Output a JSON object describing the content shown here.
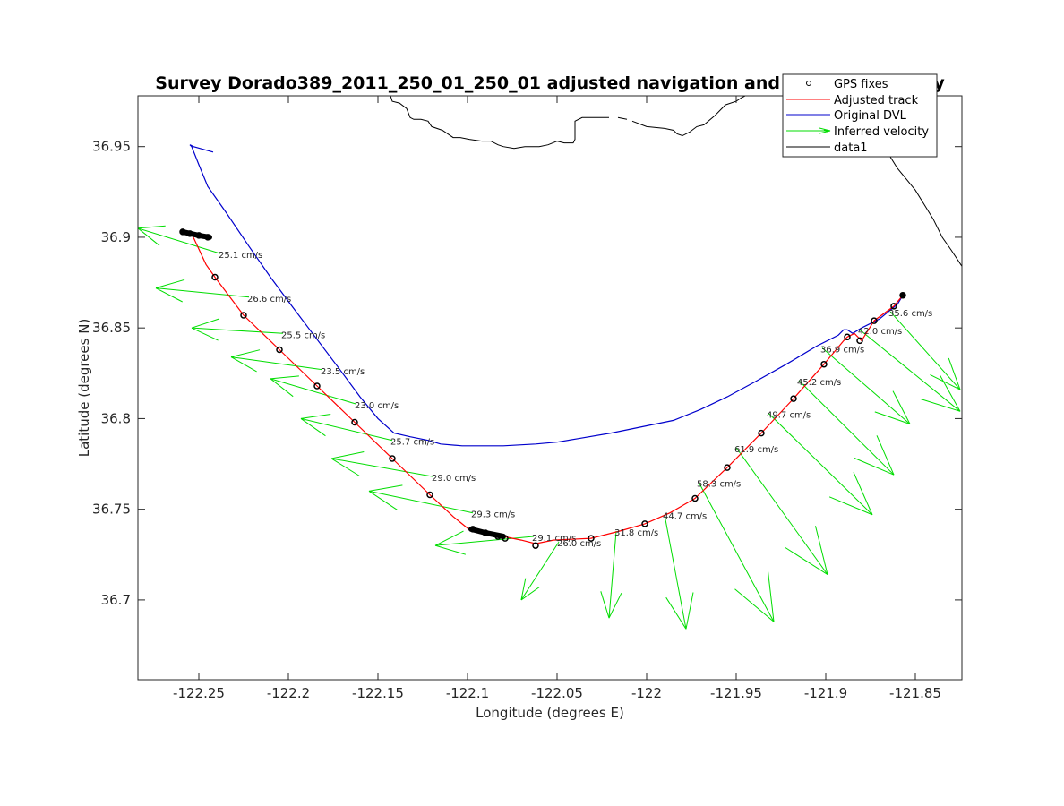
{
  "chart_data": {
    "type": "line",
    "title": "Survey Dorado389_2011_250_01_250_01 adjusted navigation and inferred velocity",
    "xlabel": "Longitude (degrees E)",
    "ylabel": "Latitude (degrees N)",
    "xlim": [
      -122.284,
      -121.824
    ],
    "ylim": [
      36.656,
      36.978
    ],
    "xticks": [
      -122.25,
      -122.2,
      -122.15,
      -122.1,
      -122.05,
      -122,
      -121.95,
      -121.9,
      -121.85
    ],
    "xtick_labels": [
      "-122.25",
      "-122.2",
      "-122.15",
      "-122.1",
      "-122.05",
      "-122",
      "-121.95",
      "-121.9",
      "-121.85"
    ],
    "yticks": [
      36.7,
      36.75,
      36.8,
      36.85,
      36.9,
      36.95
    ],
    "ytick_labels": [
      "36.7",
      "36.75",
      "36.8",
      "36.85",
      "36.9",
      "36.95"
    ],
    "grid": false,
    "legend": {
      "placement": "top-right",
      "entries": [
        {
          "label": "GPS fixes",
          "style": "marker",
          "color": "#000000"
        },
        {
          "label": "Adjusted track",
          "style": "line",
          "color": "#ff0000"
        },
        {
          "label": "Original DVL",
          "style": "line",
          "color": "#0000cc"
        },
        {
          "label": "Inferred velocity",
          "style": "arrow",
          "color": "#00dd00"
        },
        {
          "label": "data1",
          "style": "line",
          "color": "#000000"
        }
      ]
    },
    "series": [
      {
        "name": "data1",
        "kind": "coastline",
        "color": "#000000",
        "segments": [
          [
            [
              -122.143,
              36.978
            ],
            [
              -122.142,
              36.975
            ],
            [
              -122.138,
              36.974
            ],
            [
              -122.134,
              36.971
            ],
            [
              -122.132,
              36.966
            ],
            [
              -122.13,
              36.965
            ],
            [
              -122.126,
              36.965
            ],
            [
              -122.122,
              36.964
            ],
            [
              -122.12,
              36.961
            ],
            [
              -122.114,
              36.959
            ],
            [
              -122.108,
              36.955
            ],
            [
              -122.104,
              36.955
            ],
            [
              -122.099,
              36.954
            ],
            [
              -122.092,
              36.953
            ],
            [
              -122.087,
              36.953
            ],
            [
              -122.083,
              36.951
            ],
            [
              -122.08,
              36.95
            ],
            [
              -122.074,
              36.949
            ],
            [
              -122.068,
              36.95
            ],
            [
              -122.06,
              36.95
            ],
            [
              -122.055,
              36.951
            ],
            [
              -122.05,
              36.953
            ],
            [
              -122.046,
              36.952
            ],
            [
              -122.041,
              36.952
            ],
            [
              -122.04,
              36.954
            ],
            [
              -122.04,
              36.959
            ],
            [
              -122.04,
              36.964
            ],
            [
              -122.036,
              36.966
            ],
            [
              -122.028,
              36.966
            ],
            [
              -122.021,
              36.966
            ]
          ],
          [
            [
              -122.016,
              36.966
            ],
            [
              -122.011,
              36.965
            ]
          ],
          [
            [
              -122.008,
              36.964
            ],
            [
              -122.0,
              36.961
            ],
            [
              -121.99,
              36.96
            ],
            [
              -121.985,
              36.959
            ],
            [
              -121.983,
              36.957
            ],
            [
              -121.98,
              36.956
            ],
            [
              -121.976,
              36.958
            ],
            [
              -121.972,
              36.961
            ],
            [
              -121.968,
              36.962
            ],
            [
              -121.962,
              36.967
            ],
            [
              -121.956,
              36.973
            ],
            [
              -121.95,
              36.975
            ],
            [
              -121.947,
              36.977
            ],
            [
              -121.945,
              36.978
            ]
          ],
          [
            [
              -121.87,
              36.953
            ],
            [
              -121.865,
              36.946
            ],
            [
              -121.86,
              36.938
            ],
            [
              -121.855,
              36.932
            ],
            [
              -121.85,
              36.926
            ],
            [
              -121.845,
              36.918
            ],
            [
              -121.84,
              36.91
            ],
            [
              -121.835,
              36.9
            ],
            [
              -121.83,
              36.893
            ],
            [
              -121.824,
              36.884
            ]
          ]
        ]
      },
      {
        "name": "Original DVL",
        "color": "#0000cc",
        "points": [
          [
            -122.242,
            36.947
          ],
          [
            -122.253,
            36.95
          ],
          [
            -122.255,
            36.951
          ],
          [
            -122.254,
            36.95
          ],
          [
            -122.25,
            36.94
          ],
          [
            -122.245,
            36.928
          ],
          [
            -122.235,
            36.914
          ],
          [
            -122.222,
            36.895
          ],
          [
            -122.21,
            36.878
          ],
          [
            -122.198,
            36.862
          ],
          [
            -122.185,
            36.845
          ],
          [
            -122.172,
            36.828
          ],
          [
            -122.16,
            36.812
          ],
          [
            -122.15,
            36.8
          ],
          [
            -122.141,
            36.792
          ],
          [
            -122.132,
            36.79
          ],
          [
            -122.122,
            36.788
          ],
          [
            -122.115,
            36.786
          ],
          [
            -122.103,
            36.785
          ],
          [
            -122.095,
            36.785
          ],
          [
            -122.08,
            36.785
          ],
          [
            -122.062,
            36.786
          ],
          [
            -122.05,
            36.787
          ],
          [
            -122.038,
            36.789
          ],
          [
            -122.02,
            36.792
          ],
          [
            -122.0,
            36.796
          ],
          [
            -121.985,
            36.799
          ],
          [
            -121.97,
            36.805
          ],
          [
            -121.955,
            36.812
          ],
          [
            -121.94,
            36.82
          ],
          [
            -121.922,
            36.83
          ],
          [
            -121.905,
            36.84
          ],
          [
            -121.893,
            36.846
          ],
          [
            -121.89,
            36.849
          ],
          [
            -121.888,
            36.849
          ],
          [
            -121.885,
            36.847
          ],
          [
            -121.88,
            36.85
          ],
          [
            -121.87,
            36.855
          ],
          [
            -121.86,
            36.863
          ],
          [
            -121.857,
            36.868
          ]
        ]
      },
      {
        "name": "Adjusted track",
        "color": "#ff0000",
        "points": [
          [
            -122.254,
            36.902
          ],
          [
            -122.246,
            36.885
          ],
          [
            -122.241,
            36.878
          ],
          [
            -122.225,
            36.857
          ],
          [
            -122.205,
            36.838
          ],
          [
            -122.184,
            36.818
          ],
          [
            -122.163,
            36.798
          ],
          [
            -122.142,
            36.778
          ],
          [
            -122.121,
            36.758
          ],
          [
            -122.108,
            36.746
          ],
          [
            -122.098,
            36.738
          ],
          [
            -122.08,
            36.735
          ],
          [
            -122.07,
            36.733
          ],
          [
            -122.062,
            36.731
          ],
          [
            -122.052,
            36.733
          ],
          [
            -122.031,
            36.734
          ],
          [
            -122.015,
            36.738
          ],
          [
            -122.001,
            36.742
          ],
          [
            -121.987,
            36.748
          ],
          [
            -121.973,
            36.756
          ],
          [
            -121.955,
            36.773
          ],
          [
            -121.936,
            36.792
          ],
          [
            -121.918,
            36.811
          ],
          [
            -121.901,
            36.83
          ],
          [
            -121.89,
            36.843
          ],
          [
            -121.888,
            36.845
          ],
          [
            -121.884,
            36.847
          ],
          [
            -121.88,
            36.843
          ],
          [
            -121.873,
            36.854
          ],
          [
            -121.862,
            36.862
          ],
          [
            -121.857,
            36.868
          ]
        ]
      },
      {
        "name": "GPS fixes",
        "color": "#000000",
        "marker": "o",
        "points": [
          [
            -122.259,
            36.903
          ],
          [
            -122.255,
            36.902
          ],
          [
            -122.25,
            36.901
          ],
          [
            -122.245,
            36.9
          ],
          [
            -122.241,
            36.878
          ],
          [
            -122.225,
            36.857
          ],
          [
            -122.205,
            36.838
          ],
          [
            -122.184,
            36.818
          ],
          [
            -122.163,
            36.798
          ],
          [
            -122.142,
            36.778
          ],
          [
            -122.121,
            36.758
          ],
          [
            -122.097,
            36.739
          ],
          [
            -122.09,
            36.737
          ],
          [
            -122.083,
            36.735
          ],
          [
            -122.079,
            36.734
          ],
          [
            -122.062,
            36.73
          ],
          [
            -122.031,
            36.734
          ],
          [
            -122.001,
            36.742
          ],
          [
            -121.973,
            36.756
          ],
          [
            -121.955,
            36.773
          ],
          [
            -121.936,
            36.792
          ],
          [
            -121.918,
            36.811
          ],
          [
            -121.901,
            36.83
          ],
          [
            -121.888,
            36.845
          ],
          [
            -121.881,
            36.843
          ],
          [
            -121.873,
            36.854
          ],
          [
            -121.862,
            36.862
          ],
          [
            -121.857,
            36.868
          ]
        ]
      },
      {
        "name": "Inferred velocity",
        "color": "#00dd00",
        "arrows": [
          {
            "from": [
              -122.238,
              36.891
            ],
            "to": [
              -122.284,
              36.905
            ],
            "label": "25.1 cm/s"
          },
          {
            "from": [
              -122.222,
              36.867
            ],
            "to": [
              -122.274,
              36.872
            ],
            "label": "26.6 cm/s"
          },
          {
            "from": [
              -122.203,
              36.847
            ],
            "to": [
              -122.254,
              36.85
            ],
            "label": "25.5 cm/s"
          },
          {
            "from": [
              -122.181,
              36.827
            ],
            "to": [
              -122.232,
              36.834
            ],
            "label": "23.5 cm/s"
          },
          {
            "from": [
              -122.162,
              36.808
            ],
            "to": [
              -122.21,
              36.822
            ],
            "label": "23.0 cm/s"
          },
          {
            "from": [
              -122.142,
              36.788
            ],
            "to": [
              -122.193,
              36.8
            ],
            "label": "25.7 cm/s"
          },
          {
            "from": [
              -122.119,
              36.768
            ],
            "to": [
              -122.176,
              36.778
            ],
            "label": "29.0 cm/s"
          },
          {
            "from": [
              -122.097,
              36.748
            ],
            "to": [
              -122.155,
              36.76
            ],
            "label": "29.3 cm/s"
          },
          {
            "from": [
              -122.063,
              36.735
            ],
            "to": [
              -122.118,
              36.73
            ],
            "label": "29.1 cm/s"
          },
          {
            "from": [
              -122.049,
              36.732
            ],
            "to": [
              -122.07,
              36.7
            ],
            "label": "26.0 cm/s"
          },
          {
            "from": [
              -122.017,
              36.738
            ],
            "to": [
              -122.021,
              36.69
            ],
            "label": "31.8 cm/s"
          },
          {
            "from": [
              -121.99,
              36.747
            ],
            "to": [
              -121.978,
              36.684
            ],
            "label": "44.7 cm/s"
          },
          {
            "from": [
              -121.971,
              36.765
            ],
            "to": [
              -121.929,
              36.688
            ],
            "label": "58.3 cm/s"
          },
          {
            "from": [
              -121.95,
              36.784
            ],
            "to": [
              -121.899,
              36.714
            ],
            "label": "61.9 cm/s"
          },
          {
            "from": [
              -121.932,
              36.803
            ],
            "to": [
              -121.874,
              36.747
            ],
            "label": "49.7 cm/s"
          },
          {
            "from": [
              -121.915,
              36.821
            ],
            "to": [
              -121.862,
              36.769
            ],
            "label": "45.2 cm/s"
          },
          {
            "from": [
              -121.902,
              36.839
            ],
            "to": [
              -121.853,
              36.797
            ],
            "label": "36.9 cm/s"
          },
          {
            "from": [
              -121.881,
              36.849
            ],
            "to": [
              -121.825,
              36.804
            ],
            "label": "42.0 cm/s"
          },
          {
            "from": [
              -121.864,
              36.859
            ],
            "to": [
              -121.825,
              36.816
            ],
            "label": "35.6 cm/s"
          }
        ]
      }
    ]
  }
}
